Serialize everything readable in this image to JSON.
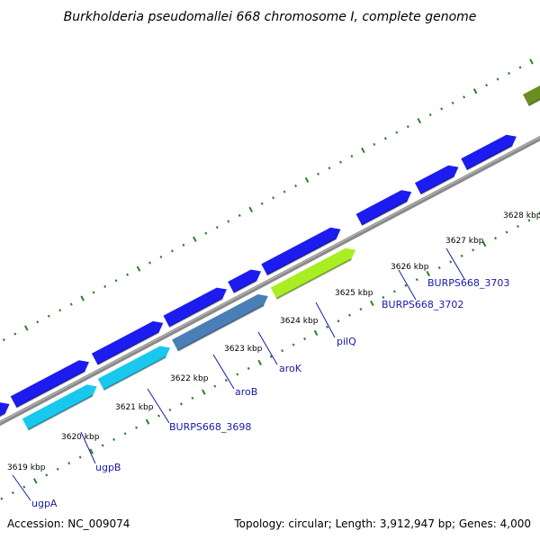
{
  "title": "Burkholderia pseudomallei 668 chromosome I, complete genome",
  "footer": {
    "accession": "Accession: NC_009074",
    "info": "Topology: circular; Length: 3,912,947 bp; Genes: 4,000"
  },
  "colors": {
    "backbone": "#8a8a8a",
    "tick": "#2e7d2e",
    "label": "#1a1aa8",
    "blue": "#1c1cf0",
    "cyan": "#19c8ee",
    "steel": "#4a7eb6",
    "lime": "#a8ee22",
    "olive": "#6b8e23",
    "red": "#ee1111"
  },
  "tick_labels": [
    "3619 kbp",
    "3620 kbp",
    "3621 kbp",
    "3622 kbp",
    "3623 kbp",
    "3624 kbp",
    "3625 kbp",
    "3626 kbp",
    "3627 kbp",
    "3628 kbp"
  ],
  "genes": [
    "ugpA",
    "ugpB",
    "BURPS668_3698",
    "aroB",
    "aroK",
    "pilQ",
    "BURPS668_3702",
    "BURPS668_3703"
  ]
}
